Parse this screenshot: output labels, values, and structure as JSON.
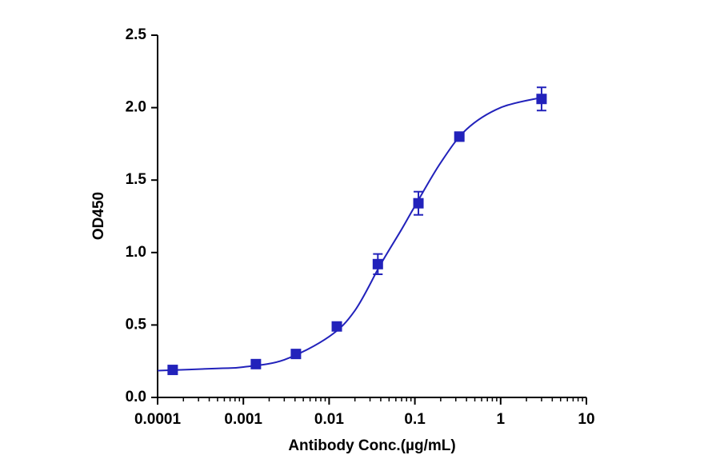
{
  "chart_data": {
    "type": "scatter",
    "xlabel": "Antibody Conc.(µg/mL)",
    "ylabel": "OD450",
    "xscale": "log",
    "xlim": [
      0.0001,
      10
    ],
    "xticks": [
      0.0001,
      0.001,
      0.01,
      0.1,
      1,
      10
    ],
    "ylim": [
      0,
      2.5
    ],
    "yticks": [
      {
        "value": 0,
        "label": "0.0"
      },
      0.5,
      {
        "value": 1,
        "label": "1.0"
      },
      1.5,
      {
        "value": 2,
        "label": "2.0"
      },
      2.5
    ],
    "series": [
      {
        "color": "#2222bb",
        "x": [
          0.00015,
          0.0014,
          0.0041,
          0.0123,
          0.037,
          0.11,
          0.33,
          3
        ],
        "values": [
          0.19,
          0.23,
          0.3,
          0.49,
          0.92,
          1.34,
          1.8,
          2.06
        ],
        "errors": [
          0.01,
          0.01,
          0.01,
          0.02,
          0.07,
          0.08,
          0.03,
          0.08
        ]
      }
    ],
    "curve": {
      "color": "#2222bb",
      "x": [
        0.0001,
        0.0005,
        0.001,
        0.003,
        0.01,
        0.02,
        0.04,
        0.07,
        0.1,
        0.2,
        0.4,
        1,
        3
      ],
      "values": [
        0.185,
        0.2,
        0.21,
        0.26,
        0.42,
        0.6,
        0.92,
        1.16,
        1.32,
        1.62,
        1.85,
        2.0,
        2.07
      ]
    }
  }
}
